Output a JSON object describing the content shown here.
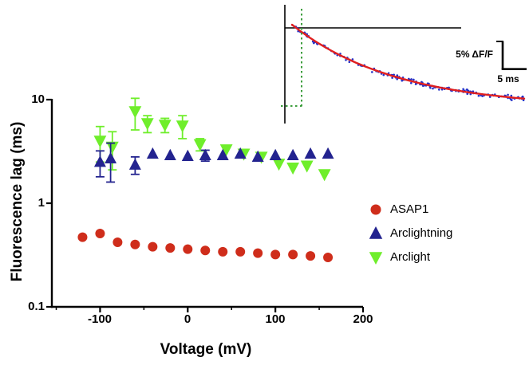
{
  "chart_data": {
    "type": "scatter",
    "title": "",
    "xlabel": "Voltage (mV)",
    "ylabel": "Fluorescence lag (ms)",
    "x_scale": "linear",
    "y_scale": "log",
    "xlim": [
      -155,
      200
    ],
    "ylim": [
      0.1,
      10
    ],
    "x_ticks": [
      -100,
      0,
      100,
      200
    ],
    "x_minor_ticks": [
      -150,
      -50,
      50,
      150
    ],
    "x_tick_labels": [
      "-100",
      "0",
      "100",
      "200"
    ],
    "y_ticks": [
      10,
      1,
      0.1
    ],
    "y_tick_labels": [
      "10",
      "1",
      "0.1"
    ],
    "grid": false,
    "legend_position": "right-center",
    "series": [
      {
        "name": "ASAP1",
        "marker": "circle",
        "color": "#cf2d1b",
        "x": [
          -120,
          -100,
          -80,
          -60,
          -40,
          -20,
          0,
          20,
          40,
          60,
          80,
          100,
          120,
          140,
          160
        ],
        "y": [
          0.47,
          0.51,
          0.42,
          0.4,
          0.38,
          0.37,
          0.36,
          0.35,
          0.34,
          0.34,
          0.33,
          0.32,
          0.32,
          0.31,
          0.3
        ],
        "yerr": [
          0,
          0,
          0,
          0,
          0,
          0,
          0,
          0,
          0,
          0,
          0,
          0,
          0,
          0,
          0
        ]
      },
      {
        "name": "Arclightning",
        "marker": "triangle-up",
        "color": "#23238f",
        "x": [
          -100,
          -88,
          -60,
          -40,
          -20,
          0,
          20,
          40,
          60,
          80,
          100,
          120,
          140,
          160
        ],
        "y": [
          2.5,
          2.7,
          2.35,
          3.0,
          2.9,
          2.85,
          2.9,
          2.9,
          3.0,
          2.8,
          2.9,
          2.9,
          3.0,
          3.0
        ],
        "yerr": [
          0.7,
          1.1,
          0.45,
          0,
          0,
          0,
          0.35,
          0,
          0,
          0,
          0,
          0,
          0,
          0
        ]
      },
      {
        "name": "Arclight",
        "marker": "triangle-down",
        "color": "#6fee2b",
        "x": [
          -100,
          -86,
          -60,
          -46,
          -26,
          -6,
          14,
          44,
          64,
          84,
          104,
          120,
          136,
          156
        ],
        "y": [
          4.0,
          3.5,
          7.7,
          5.9,
          5.7,
          5.6,
          3.7,
          3.3,
          3.0,
          2.8,
          2.4,
          2.2,
          2.3,
          1.9
        ],
        "yerr": [
          1.5,
          1.4,
          2.6,
          1.1,
          0.9,
          1.4,
          0.5,
          0,
          0,
          0,
          0,
          0,
          0,
          0
        ]
      }
    ],
    "inset": {
      "description": "exponential-decay fluorescence trace with green dashed lag markers",
      "scalebar_vertical_label": "5% ΔF/F",
      "scalebar_horizontal_label": "5 ms",
      "trace_dot_color": "#2431c8",
      "fit_color": "#e01f1f",
      "lag_marker_color": "#3d9e3d",
      "axis_color": "#000000"
    }
  }
}
